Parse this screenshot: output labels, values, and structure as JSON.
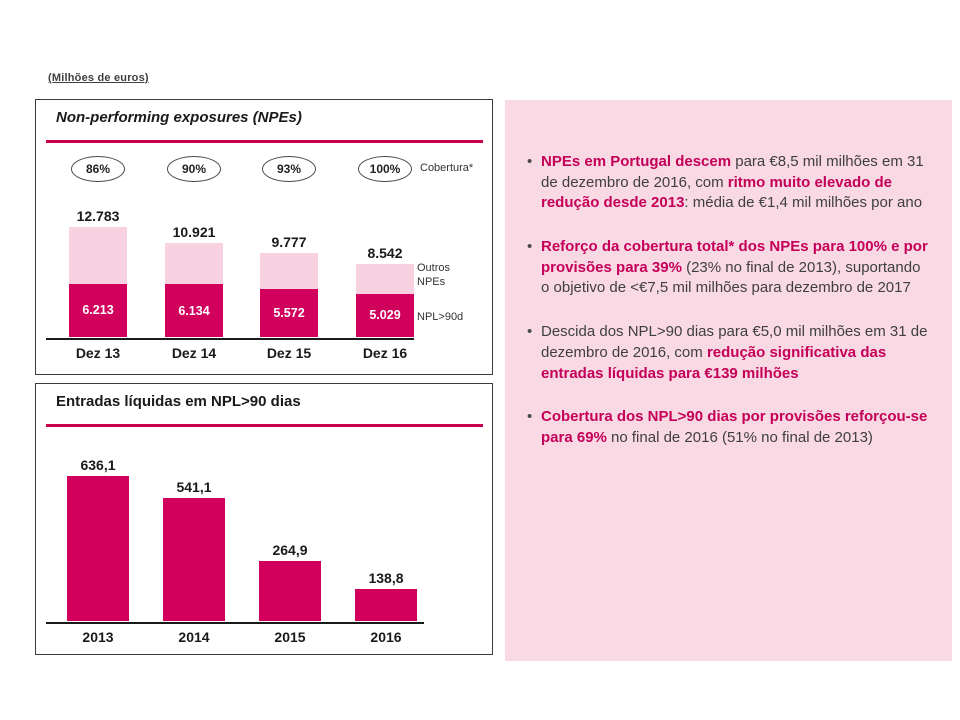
{
  "slide": {
    "units_label": "(Milhões de euros)"
  },
  "colors": {
    "accent_bar": "#D1005D",
    "accent_text": "#C40059",
    "bar_light": "#F8D2E0",
    "panel_bg": "#F9D9E3",
    "title_rule": "#C8004F",
    "text_dark": "#3F3F3F"
  },
  "chart_data": [
    {
      "type": "bar",
      "stacked": true,
      "title": "Non-performing exposures (NPEs)",
      "categories": [
        "Dez 13",
        "Dez 14",
        "Dez 15",
        "Dez 16"
      ],
      "series": [
        {
          "name": "NPL>90d",
          "values": [
            6213,
            6134,
            5572,
            5029
          ]
        },
        {
          "name": "Outros NPEs",
          "values": [
            6570,
            4787,
            4205,
            3513
          ]
        }
      ],
      "totals_values": [
        12783,
        10921,
        9777,
        8542
      ],
      "total_labels": [
        "12.783",
        "10.921",
        "9.777",
        "8.542"
      ],
      "npl_labels": [
        "6.213",
        "6.134",
        "5.572",
        "5.029"
      ],
      "coverage_values": [
        "86%",
        "90%",
        "93%",
        "100%"
      ],
      "coverage_label": "Cobertura*",
      "legend": [
        "Outros NPEs",
        "NPL>90d"
      ],
      "ylim": [
        0,
        12783
      ],
      "grid": false,
      "legend_position": "right"
    },
    {
      "type": "bar",
      "title": "Entradas líquidas em NPL>90 dias",
      "categories": [
        "2013",
        "2014",
        "2015",
        "2016"
      ],
      "values": [
        636.1,
        541.1,
        264.9,
        138.8
      ],
      "value_labels": [
        "636,1",
        "541,1",
        "264,9",
        "138,8"
      ],
      "ylim": [
        0,
        700
      ],
      "grid": false
    }
  ],
  "bullets": [
    {
      "segments": [
        {
          "text": "NPEs em Portugal descem",
          "highlight": true
        },
        {
          "text": " para €8,5 mil milhões em 31 de dezembro de 2016, com ",
          "highlight": false
        },
        {
          "text": "ritmo muito elevado de redução desde 2013",
          "highlight": true
        },
        {
          "text": ": média de €1,4 mil milhões por ano",
          "highlight": false
        }
      ]
    },
    {
      "segments": [
        {
          "text": "Reforço da cobertura total* dos NPEs para 100% e por provisões para 39%",
          "highlight": true
        },
        {
          "text": " (23% no final de 2013), suportando o objetivo de <€7,5 mil milhões para dezembro de 2017",
          "highlight": false
        }
      ]
    },
    {
      "segments": [
        {
          "text": "Descida dos NPL>90 dias para €5,0 mil milhões em 31 de dezembro de 2016, com ",
          "highlight": false
        },
        {
          "text": "redução significativa das entradas líquidas para €139 milhões",
          "highlight": true
        }
      ]
    },
    {
      "segments": [
        {
          "text": "Cobertura dos NPL>90 dias por provisões reforçou-se para 69%",
          "highlight": true
        },
        {
          "text": " no final de 2016 (51% no final de 2013)",
          "highlight": false
        }
      ]
    }
  ]
}
